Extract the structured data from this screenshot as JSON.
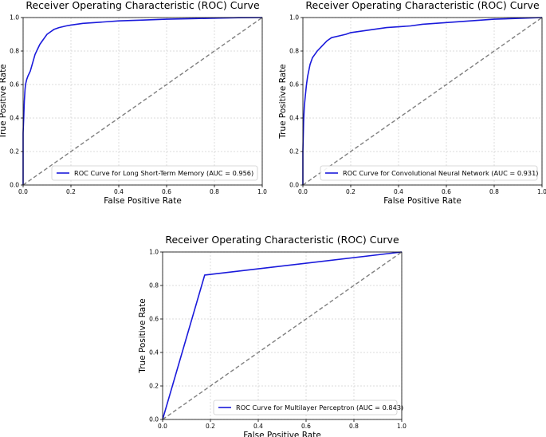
{
  "chart_data": [
    {
      "type": "line",
      "title": "Receiver Operating Characteristic (ROC) Curve",
      "xlabel": "False Positive Rate",
      "ylabel": "True Positive Rate",
      "xlim": [
        0,
        1
      ],
      "ylim": [
        0,
        1
      ],
      "x_ticks": [
        "0.0",
        "0.2",
        "0.4",
        "0.6",
        "0.8",
        "1.0"
      ],
      "y_ticks": [
        "0.0",
        "0.2",
        "0.4",
        "0.6",
        "0.8",
        "1.0"
      ],
      "grid": true,
      "legend_position": "lower-right",
      "series": [
        {
          "name": "ROC Curve for Long Short-Term Memory (AUC = 0.956)",
          "color": "#1a1adb",
          "style": "solid",
          "x": [
            0,
            0,
            0.003,
            0.005,
            0.008,
            0.01,
            0.015,
            0.02,
            0.03,
            0.04,
            0.05,
            0.06,
            0.07,
            0.08,
            0.09,
            0.1,
            0.11,
            0.13,
            0.15,
            0.18,
            0.2,
            0.25,
            0.3,
            0.35,
            0.4,
            0.5,
            0.6,
            0.7,
            0.8,
            0.9,
            1.0
          ],
          "y": [
            0,
            0.31,
            0.42,
            0.5,
            0.57,
            0.6,
            0.63,
            0.65,
            0.68,
            0.73,
            0.78,
            0.81,
            0.84,
            0.86,
            0.88,
            0.9,
            0.91,
            0.93,
            0.94,
            0.95,
            0.955,
            0.965,
            0.97,
            0.975,
            0.98,
            0.985,
            0.99,
            0.993,
            0.996,
            0.999,
            1.0
          ]
        },
        {
          "name": "",
          "color": "#7f7f7f",
          "style": "dashed",
          "x": [
            0,
            1
          ],
          "y": [
            0,
            1
          ]
        }
      ]
    },
    {
      "type": "line",
      "title": "Receiver Operating Characteristic (ROC) Curve",
      "xlabel": "False Positive Rate",
      "ylabel": "True Positive Rate",
      "xlim": [
        0,
        1
      ],
      "ylim": [
        0,
        1
      ],
      "x_ticks": [
        "0.0",
        "0.2",
        "0.4",
        "0.6",
        "0.8",
        "1.0"
      ],
      "y_ticks": [
        "0.0",
        "0.2",
        "0.4",
        "0.6",
        "0.8",
        "1.0"
      ],
      "grid": true,
      "legend_position": "lower-right",
      "series": [
        {
          "name": "ROC Curve for Convolutional Neural Network (AUC = 0.931)",
          "color": "#1a1adb",
          "style": "solid",
          "x": [
            0,
            0,
            0.003,
            0.006,
            0.01,
            0.015,
            0.02,
            0.03,
            0.04,
            0.05,
            0.06,
            0.08,
            0.1,
            0.12,
            0.15,
            0.18,
            0.2,
            0.25,
            0.3,
            0.35,
            0.4,
            0.45,
            0.5,
            0.6,
            0.7,
            0.8,
            0.9,
            1.0
          ],
          "y": [
            0,
            0.2,
            0.38,
            0.47,
            0.53,
            0.6,
            0.65,
            0.72,
            0.76,
            0.78,
            0.8,
            0.83,
            0.86,
            0.88,
            0.89,
            0.9,
            0.91,
            0.92,
            0.93,
            0.94,
            0.945,
            0.95,
            0.96,
            0.97,
            0.98,
            0.99,
            0.995,
            1.0
          ]
        },
        {
          "name": "",
          "color": "#7f7f7f",
          "style": "dashed",
          "x": [
            0,
            1
          ],
          "y": [
            0,
            1
          ]
        }
      ]
    },
    {
      "type": "line",
      "title": "Receiver Operating Characteristic (ROC) Curve",
      "xlabel": "False Positive Rate",
      "ylabel": "True Positive Rate",
      "xlim": [
        0,
        1
      ],
      "ylim": [
        0,
        1
      ],
      "x_ticks": [
        "0.0",
        "0.2",
        "0.4",
        "0.6",
        "0.8",
        "1.0"
      ],
      "y_ticks": [
        "0.0",
        "0.2",
        "0.4",
        "0.6",
        "0.8",
        "1.0"
      ],
      "grid": true,
      "legend_position": "lower-right",
      "series": [
        {
          "name": "ROC Curve for Multilayer Perceptron (AUC = 0.843)",
          "color": "#1a1adb",
          "style": "solid",
          "x": [
            0,
            0.176,
            1.0
          ],
          "y": [
            0,
            0.862,
            1.0
          ]
        },
        {
          "name": "",
          "color": "#7f7f7f",
          "style": "dashed",
          "x": [
            0,
            1
          ],
          "y": [
            0,
            1
          ]
        }
      ]
    }
  ]
}
